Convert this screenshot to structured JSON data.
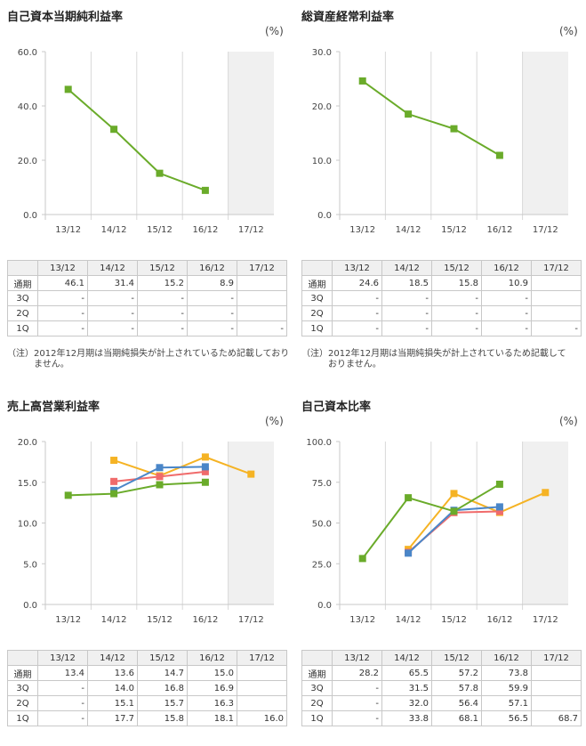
{
  "panels": [
    {
      "title": "自己資本当期純利益率",
      "unit": "(%)",
      "chart_data": {
        "type": "line",
        "categories": [
          "13/12",
          "14/12",
          "15/12",
          "16/12",
          "17/12"
        ],
        "yticks": [
          "60.0",
          "40.0",
          "20.0",
          "0.0"
        ],
        "ylim": [
          0,
          60
        ],
        "forecast_shaded": "17/12",
        "series": [
          {
            "name": "通期",
            "color": "#6aab2a",
            "values": [
              46.1,
              31.4,
              15.2,
              8.9,
              null
            ]
          }
        ]
      },
      "table": {
        "header": [
          "",
          "13/12",
          "14/12",
          "15/12",
          "16/12",
          "17/12"
        ],
        "rows": [
          [
            "通期",
            "46.1",
            "31.4",
            "15.2",
            "8.9",
            ""
          ],
          [
            "3Q",
            "-",
            "-",
            "-",
            "-",
            ""
          ],
          [
            "2Q",
            "-",
            "-",
            "-",
            "-",
            ""
          ],
          [
            "1Q",
            "-",
            "-",
            "-",
            "-",
            "-"
          ]
        ]
      },
      "note_prefix": "（注）",
      "note_text": "2012年12月期は当期純損失が計上されているため記載しておりません。"
    },
    {
      "title": "総資産経常利益率",
      "unit": "(%)",
      "chart_data": {
        "type": "line",
        "categories": [
          "13/12",
          "14/12",
          "15/12",
          "16/12",
          "17/12"
        ],
        "yticks": [
          "30.0",
          "20.0",
          "10.0",
          "0.0"
        ],
        "ylim": [
          0,
          30
        ],
        "forecast_shaded": "17/12",
        "series": [
          {
            "name": "通期",
            "color": "#6aab2a",
            "values": [
              24.6,
              18.5,
              15.8,
              10.9,
              null
            ]
          }
        ]
      },
      "table": {
        "header": [
          "",
          "13/12",
          "14/12",
          "15/12",
          "16/12",
          "17/12"
        ],
        "rows": [
          [
            "通期",
            "24.6",
            "18.5",
            "15.8",
            "10.9",
            ""
          ],
          [
            "3Q",
            "-",
            "-",
            "-",
            "-",
            ""
          ],
          [
            "2Q",
            "-",
            "-",
            "-",
            "-",
            ""
          ],
          [
            "1Q",
            "-",
            "-",
            "-",
            "-",
            "-"
          ]
        ]
      },
      "note_prefix": "（注）",
      "note_text": "2012年12月期は当期純損失が計上されているため記載しておりません。"
    },
    {
      "title": "売上高営業利益率",
      "unit": "(%)",
      "chart_data": {
        "type": "line",
        "categories": [
          "13/12",
          "14/12",
          "15/12",
          "16/12",
          "17/12"
        ],
        "yticks": [
          "20.0",
          "15.0",
          "10.0",
          "5.0",
          "0.0"
        ],
        "ylim": [
          0,
          20
        ],
        "forecast_shaded": "17/12",
        "series": [
          {
            "name": "通期",
            "color": "#6aab2a",
            "values": [
              13.4,
              13.6,
              14.7,
              15.0,
              null
            ]
          },
          {
            "name": "3Q",
            "color": "#4a86c8",
            "values": [
              null,
              14.0,
              16.8,
              16.9,
              null
            ]
          },
          {
            "name": "2Q",
            "color": "#f06b6b",
            "values": [
              null,
              15.1,
              15.7,
              16.3,
              null
            ]
          },
          {
            "name": "1Q",
            "color": "#f5b324",
            "values": [
              null,
              17.7,
              15.8,
              18.1,
              16.0
            ]
          }
        ]
      },
      "table": {
        "header": [
          "",
          "13/12",
          "14/12",
          "15/12",
          "16/12",
          "17/12"
        ],
        "rows": [
          [
            "通期",
            "13.4",
            "13.6",
            "14.7",
            "15.0",
            ""
          ],
          [
            "3Q",
            "-",
            "14.0",
            "16.8",
            "16.9",
            ""
          ],
          [
            "2Q",
            "-",
            "15.1",
            "15.7",
            "16.3",
            ""
          ],
          [
            "1Q",
            "-",
            "17.7",
            "15.8",
            "18.1",
            "16.0"
          ]
        ]
      }
    },
    {
      "title": "自己資本比率",
      "unit": "(%)",
      "chart_data": {
        "type": "line",
        "categories": [
          "13/12",
          "14/12",
          "15/12",
          "16/12",
          "17/12"
        ],
        "yticks": [
          "100.0",
          "75.0",
          "50.0",
          "25.0",
          "0.0"
        ],
        "ylim": [
          0,
          100
        ],
        "forecast_shaded": "17/12",
        "series": [
          {
            "name": "通期",
            "color": "#6aab2a",
            "values": [
              28.2,
              65.5,
              57.2,
              73.8,
              null
            ]
          },
          {
            "name": "3Q",
            "color": "#4a86c8",
            "values": [
              null,
              31.5,
              57.8,
              59.9,
              null
            ]
          },
          {
            "name": "2Q",
            "color": "#f06b6b",
            "values": [
              null,
              32.0,
              56.4,
              57.1,
              null
            ]
          },
          {
            "name": "1Q",
            "color": "#f5b324",
            "values": [
              null,
              33.8,
              68.1,
              56.5,
              68.7
            ]
          }
        ]
      },
      "table": {
        "header": [
          "",
          "13/12",
          "14/12",
          "15/12",
          "16/12",
          "17/12"
        ],
        "rows": [
          [
            "通期",
            "28.2",
            "65.5",
            "57.2",
            "73.8",
            ""
          ],
          [
            "3Q",
            "-",
            "31.5",
            "57.8",
            "59.9",
            ""
          ],
          [
            "2Q",
            "-",
            "32.0",
            "56.4",
            "57.1",
            ""
          ],
          [
            "1Q",
            "-",
            "33.8",
            "68.1",
            "56.5",
            "68.7"
          ]
        ]
      }
    }
  ]
}
